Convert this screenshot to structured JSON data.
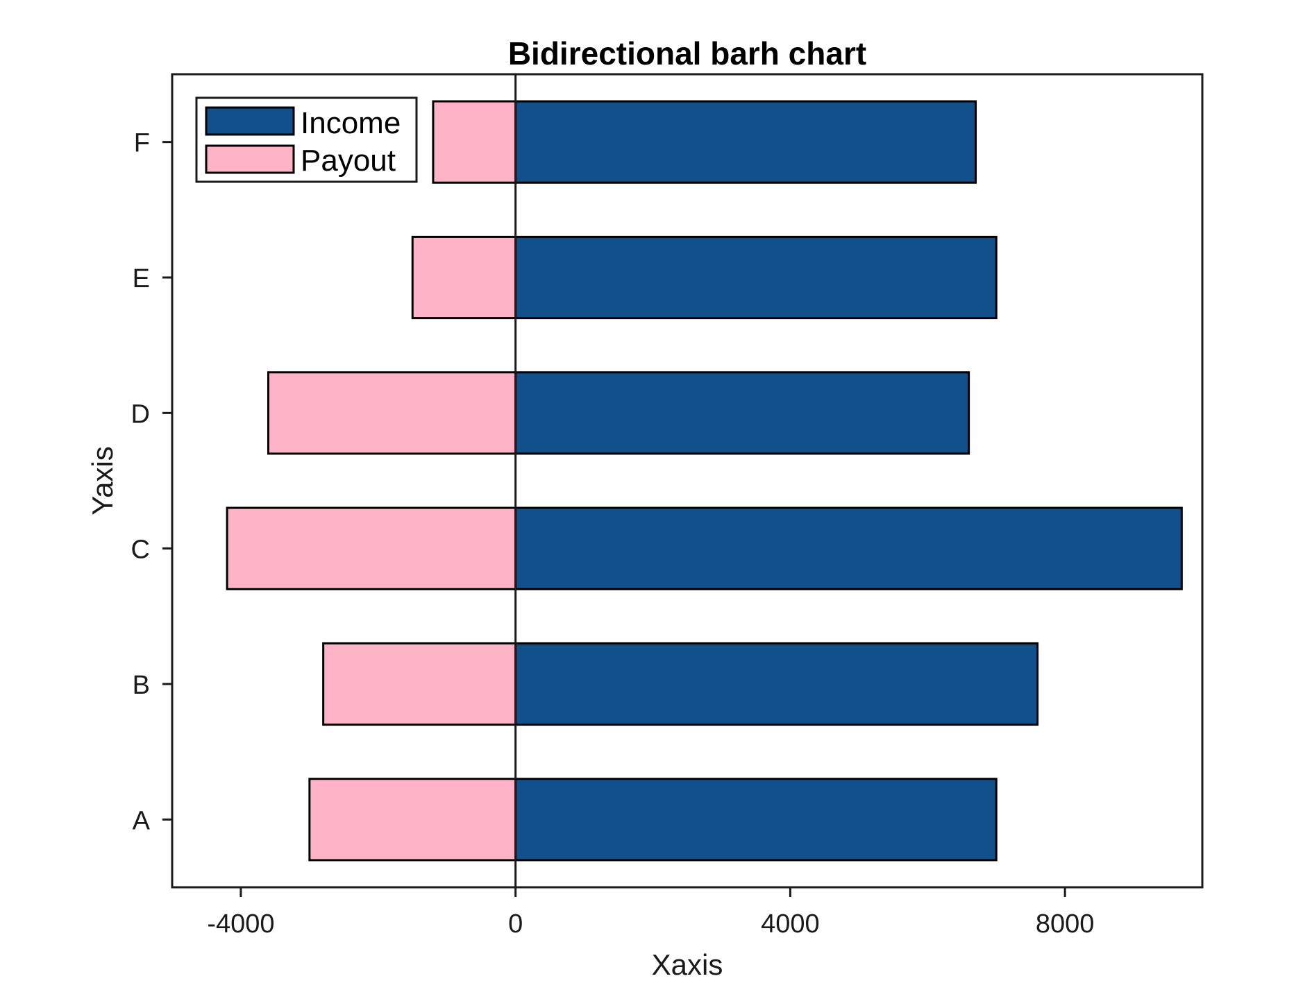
{
  "chart_data": {
    "type": "bar",
    "orientation": "horizontal",
    "title": "Bidirectional barh chart",
    "xlabel": "Xaxis",
    "ylabel": "Yaxis",
    "categories": [
      "A",
      "B",
      "C",
      "D",
      "E",
      "F"
    ],
    "series": [
      {
        "name": "Income",
        "values": [
          7000,
          7600,
          9700,
          6600,
          7000,
          6700
        ],
        "color": "#12508c"
      },
      {
        "name": "Payout",
        "values": [
          -3000,
          -2800,
          -4200,
          -3600,
          -1500,
          -1200
        ],
        "color": "#ffb3c6"
      }
    ],
    "xlim": [
      -5000,
      10000
    ],
    "xticks": [
      -4000,
      0,
      4000,
      8000
    ],
    "xtick_labels": [
      "-4000",
      "0",
      "4000",
      "8000"
    ],
    "zero_line": true,
    "grid": false,
    "legend": {
      "position": "top-left"
    }
  }
}
